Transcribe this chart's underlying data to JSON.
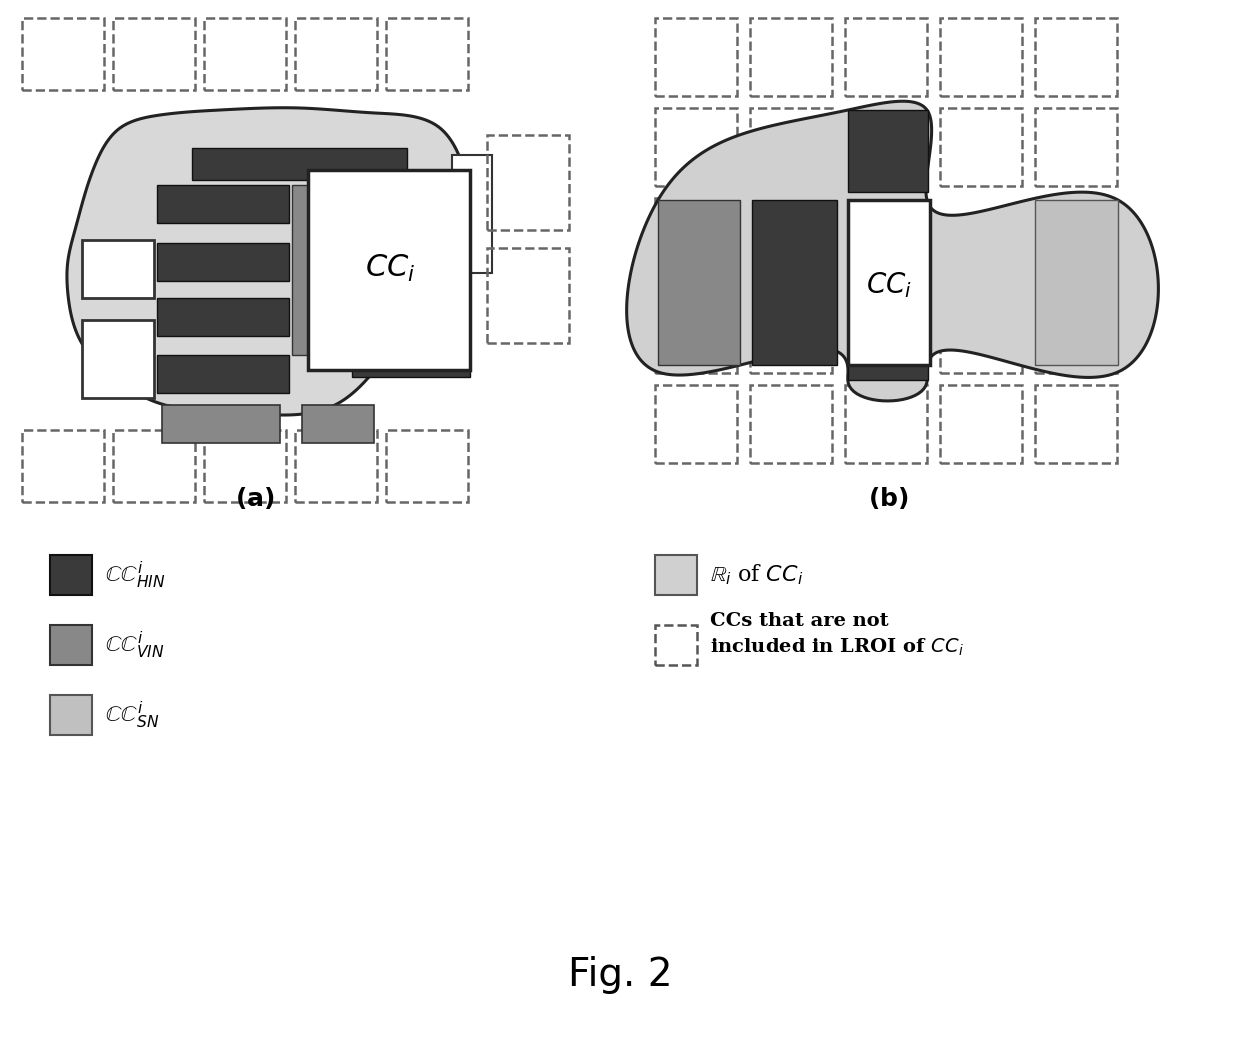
{
  "bg_color": "#ffffff",
  "dark_color": "#3a3a3a",
  "medium_color": "#888888",
  "light_color": "#c0c0c0",
  "lroi_color": "#d0d0d0",
  "fig2_label": "Fig. 2"
}
